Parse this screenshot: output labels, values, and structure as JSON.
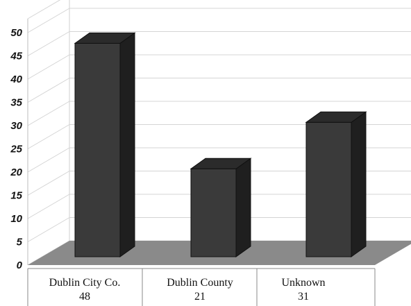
{
  "chart_data": {
    "type": "bar",
    "categories": [
      "Dublin City Co.",
      "Dublin County",
      "Unknown"
    ],
    "values": [
      48,
      21,
      31
    ],
    "value_labels": [
      "48",
      "21",
      "31"
    ],
    "ylim": [
      0,
      50
    ],
    "yticks": [
      "0",
      "5",
      "10",
      "15",
      "20",
      "25",
      "30",
      "35",
      "40",
      "45",
      "50"
    ],
    "grid": true,
    "style": "3d",
    "colors": {
      "bar_front": "#3a3a3a",
      "bar_side": "#1f1f1f",
      "bar_top": "#2b2b2b",
      "floor": "#8a8a8a",
      "gridline": "#d4d4d4"
    }
  }
}
